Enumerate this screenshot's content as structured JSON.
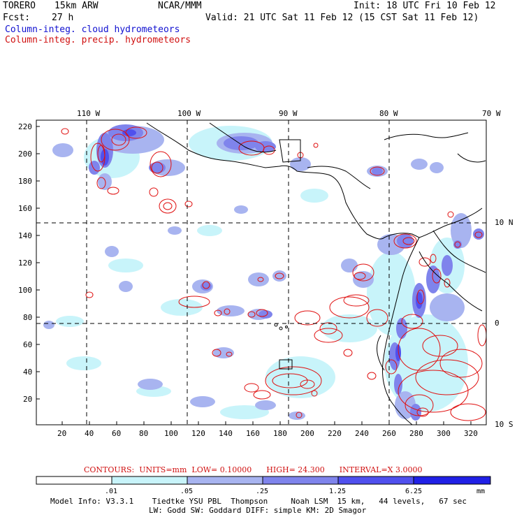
{
  "header": {
    "model": "TORERO",
    "resolution": "15km ARW",
    "org": "NCAR/MMM",
    "init": "Init: 18 UTC Fri 10 Feb 12",
    "fcst_label": "Fcst:",
    "fcst_value": "27 h",
    "valid": "Valid: 21 UTC Sat 11 Feb 12 (15 CST Sat 11 Feb 12)",
    "legend_cloud": "Column-integ. cloud hydrometeors",
    "legend_precip": "Column-integ. precip. hydrometeors"
  },
  "map": {
    "top_lon_labels": [
      "110 W",
      "100 W",
      "90 W",
      "80 W",
      "70 W"
    ],
    "right_lat_labels": [
      "10 N",
      "0",
      "10 S"
    ],
    "left_ticks": [
      "220",
      "200",
      "180",
      "160",
      "140",
      "120",
      "100",
      "80",
      "60",
      "40",
      "20"
    ],
    "bottom_ticks": [
      "20",
      "40",
      "60",
      "80",
      "100",
      "120",
      "140",
      "160",
      "180",
      "200",
      "220",
      "240",
      "260",
      "280",
      "300",
      "320"
    ]
  },
  "contours": {
    "label": "CONTOURS:",
    "units": "UNITS=mm",
    "low": "LOW= 0.10000",
    "high": "HIGH= 24.300",
    "interval": "INTERVAL=X 3.0000"
  },
  "colorbar": {
    "labels": [
      ".01",
      ".05",
      ".25",
      "1.25",
      "6.25",
      "mm"
    ],
    "colors": [
      "#ffffff",
      "#c8f4fa",
      "#a8b4f0",
      "#7f84ec",
      "#5050ee",
      "#2020e6"
    ]
  },
  "footer": {
    "line1": "Model Info: V3.3.1    Tiedtke YSU PBL  Thompson     Noah LSM  15 km,   44 levels,   67 sec",
    "line2": "LW: Godd SW: Goddard DIFF: simple KM: 2D Smagor"
  },
  "colors": {
    "cloud_light": "#c8f4fa",
    "cloud_mid": "#a8b4f0",
    "cloud_dark": "#7f84ec",
    "cloud_heavy": "#5050ee",
    "precip": "#e01010"
  }
}
